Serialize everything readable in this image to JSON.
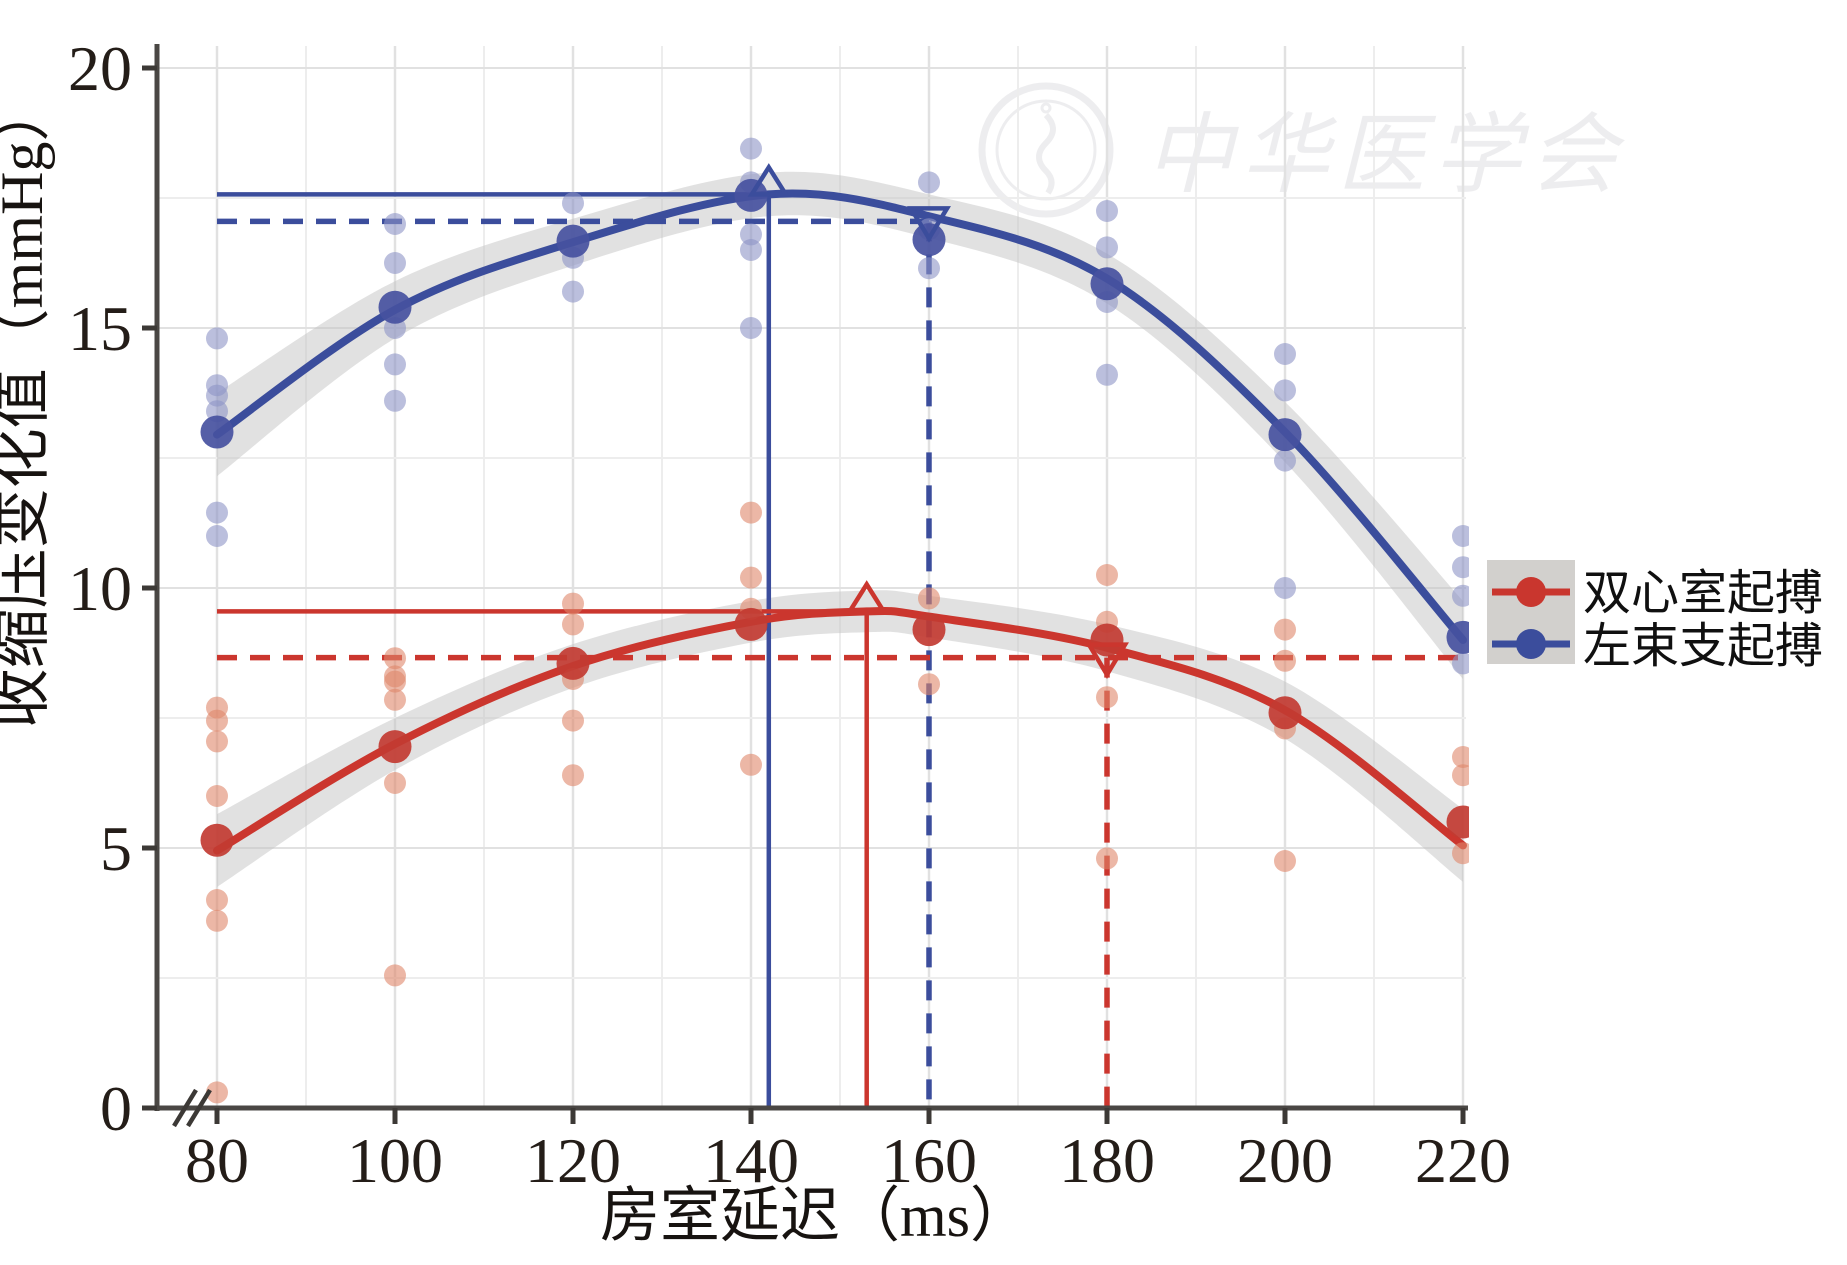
{
  "watermark": {
    "text": "中华医学会"
  },
  "legend": {
    "items": [
      {
        "id": "biventricular",
        "label": "双心室起搏",
        "color": "#c9362e",
        "light_color": "#e2english"
      },
      {
        "id": "left-bundle-branch",
        "label": "左束支起搏",
        "color": "#3b4d9c",
        "light_color": "#8d95c6"
      }
    ]
  },
  "axes": {
    "x": {
      "title": "房室延迟（ms）",
      "ticks": [
        80,
        100,
        120,
        140,
        160,
        180,
        200,
        220
      ],
      "range": [
        80,
        220
      ],
      "has_break": true,
      "break_symbol": "//"
    },
    "y": {
      "title": "收缩压变化值（mmHg）",
      "ticks": [
        0,
        5,
        10,
        15,
        20
      ],
      "range": [
        0,
        20
      ]
    }
  },
  "chart_data": {
    "type": "scatter",
    "title": "",
    "xlabel": "房室延迟（ms）",
    "ylabel": "收缩压变化值（mmHg）",
    "xlim": [
      80,
      220
    ],
    "ylim": [
      0,
      20
    ],
    "grid": {
      "x_step": 10,
      "y_step": 2.5,
      "on": true
    },
    "legend_position": "right",
    "band_color": "#c4c4c4",
    "series": [
      {
        "id": "left-bundle-branch",
        "name": "左束支起搏",
        "color": "#3b4d9c",
        "light_color": "#8d95c6",
        "dark_point_color": "#46519f",
        "curve": [
          [
            80,
            12.95
          ],
          [
            100,
            15.35
          ],
          [
            120,
            16.65
          ],
          [
            142,
            17.57
          ],
          [
            160,
            17.15
          ],
          [
            180,
            15.95
          ],
          [
            200,
            13.0
          ],
          [
            220,
            9.0
          ]
        ],
        "band_halfwidth": [
          0.8,
          0.55,
          0.45,
          0.42,
          0.42,
          0.48,
          0.58,
          0.75
        ],
        "points_light": [
          [
            80,
            14.8
          ],
          [
            80,
            13.9
          ],
          [
            80,
            13.7
          ],
          [
            80,
            13.4
          ],
          [
            80,
            11.45
          ],
          [
            80,
            11.0
          ],
          [
            100,
            17.0
          ],
          [
            100,
            16.25
          ],
          [
            100,
            15.0
          ],
          [
            100,
            14.3
          ],
          [
            100,
            13.6
          ],
          [
            120,
            17.4
          ],
          [
            120,
            16.35
          ],
          [
            120,
            15.7
          ],
          [
            140,
            18.45
          ],
          [
            140,
            17.8
          ],
          [
            140,
            16.8
          ],
          [
            140,
            16.5
          ],
          [
            140,
            15.0
          ],
          [
            160,
            17.8
          ],
          [
            160,
            16.9
          ],
          [
            160,
            16.15
          ],
          [
            180,
            17.25
          ],
          [
            180,
            16.55
          ],
          [
            180,
            15.5
          ],
          [
            180,
            14.1
          ],
          [
            200,
            14.5
          ],
          [
            200,
            13.8
          ],
          [
            200,
            12.45
          ],
          [
            200,
            10.0
          ],
          [
            220,
            11.0
          ],
          [
            220,
            10.4
          ],
          [
            220,
            9.85
          ],
          [
            220,
            8.55
          ]
        ],
        "points_dark": [
          [
            80,
            13.0
          ],
          [
            100,
            15.4
          ],
          [
            120,
            16.67
          ],
          [
            140,
            17.55
          ],
          [
            160,
            16.7
          ],
          [
            180,
            15.85
          ],
          [
            200,
            12.95
          ],
          [
            220,
            9.05
          ]
        ],
        "peak": {
          "x": 142,
          "y": 17.57
        },
        "dashed_ref": {
          "x": 160,
          "y": 17.05,
          "extend_right": 160
        }
      },
      {
        "id": "biventricular",
        "name": "双心室起搏",
        "color": "#cb362e",
        "light_color": "#e0876a",
        "dark_point_color": "#c23b32",
        "curve": [
          [
            80,
            4.95
          ],
          [
            100,
            7.0
          ],
          [
            120,
            8.5
          ],
          [
            140,
            9.35
          ],
          [
            153,
            9.55
          ],
          [
            160,
            9.45
          ],
          [
            180,
            8.85
          ],
          [
            200,
            7.65
          ],
          [
            220,
            5.05
          ]
        ],
        "band_halfwidth": [
          0.7,
          0.5,
          0.42,
          0.4,
          0.4,
          0.4,
          0.45,
          0.55,
          0.7
        ],
        "points_light": [
          [
            80,
            7.7
          ],
          [
            80,
            7.45
          ],
          [
            80,
            7.05
          ],
          [
            80,
            6.0
          ],
          [
            80,
            4.0
          ],
          [
            80,
            3.6
          ],
          [
            80,
            0.3
          ],
          [
            100,
            8.65
          ],
          [
            100,
            8.3
          ],
          [
            100,
            8.2
          ],
          [
            100,
            7.85
          ],
          [
            100,
            6.25
          ],
          [
            100,
            2.55
          ],
          [
            120,
            9.7
          ],
          [
            120,
            9.3
          ],
          [
            120,
            8.25
          ],
          [
            120,
            7.45
          ],
          [
            120,
            6.4
          ],
          [
            140,
            11.45
          ],
          [
            140,
            10.2
          ],
          [
            140,
            9.6
          ],
          [
            140,
            6.6
          ],
          [
            160,
            9.8
          ],
          [
            160,
            8.15
          ],
          [
            180,
            10.25
          ],
          [
            180,
            9.35
          ],
          [
            180,
            7.9
          ],
          [
            180,
            4.8
          ],
          [
            200,
            9.2
          ],
          [
            200,
            8.6
          ],
          [
            200,
            7.3
          ],
          [
            200,
            4.75
          ],
          [
            220,
            6.75
          ],
          [
            220,
            6.4
          ],
          [
            220,
            4.9
          ]
        ],
        "points_dark": [
          [
            80,
            5.15
          ],
          [
            100,
            6.95
          ],
          [
            120,
            8.55
          ],
          [
            140,
            9.3
          ],
          [
            160,
            9.2
          ],
          [
            180,
            9.0
          ],
          [
            200,
            7.6
          ],
          [
            220,
            5.5
          ]
        ],
        "peak": {
          "x": 153,
          "y": 9.55
        },
        "dashed_ref": {
          "x": 180,
          "y": 8.66,
          "extend_right": 220
        }
      }
    ]
  }
}
